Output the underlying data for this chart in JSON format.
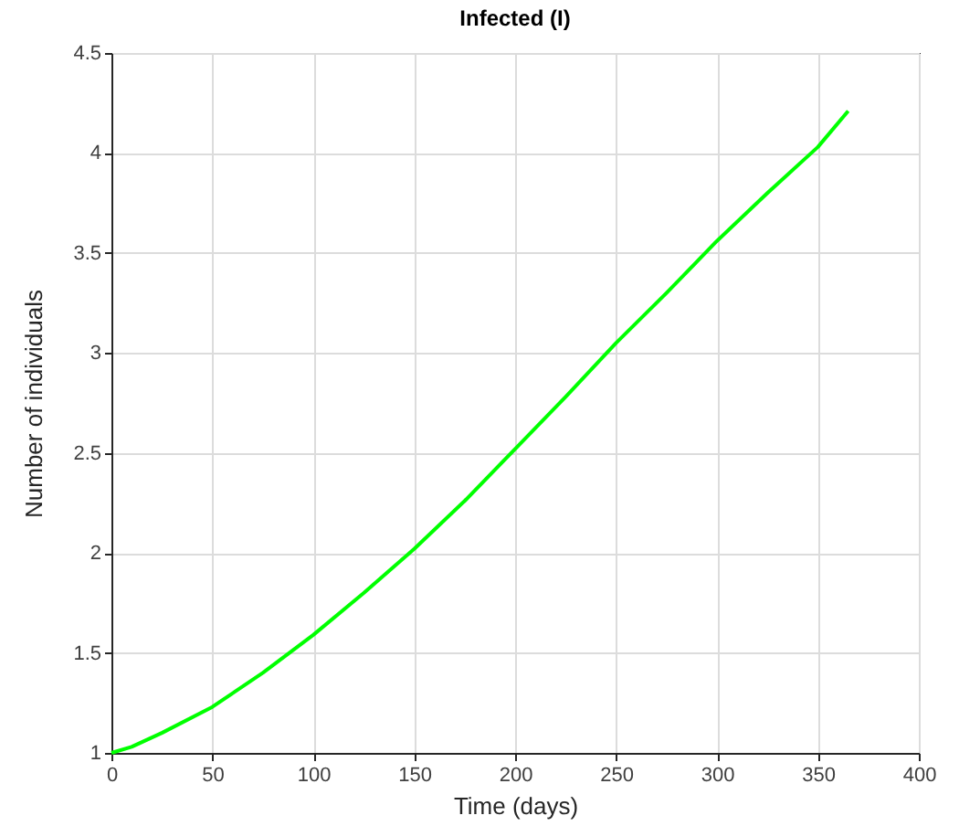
{
  "chart_data": {
    "type": "line",
    "title": "Infected (I)",
    "xlabel": "Time (days)",
    "ylabel": "Number of individuals",
    "x": [
      0,
      10,
      25,
      50,
      75,
      100,
      125,
      150,
      175,
      200,
      225,
      250,
      275,
      300,
      325,
      350,
      365
    ],
    "series": [
      {
        "color": "#00ff00",
        "values": [
          1,
          1.03,
          1.1,
          1.23,
          1.4,
          1.59,
          1.8,
          2.02,
          2.26,
          2.52,
          2.78,
          3.05,
          3.3,
          3.56,
          3.8,
          4.03,
          4.21
        ]
      }
    ],
    "xlim": [
      0,
      400
    ],
    "xticks": [
      0,
      50,
      100,
      150,
      200,
      250,
      300,
      350,
      400
    ],
    "ylim": [
      1,
      4.5
    ],
    "yticks": [
      1,
      1.5,
      2,
      2.5,
      3,
      3.5,
      4,
      4.5
    ],
    "grid": true,
    "legend": false,
    "marker": "none",
    "line_style": "solid"
  }
}
